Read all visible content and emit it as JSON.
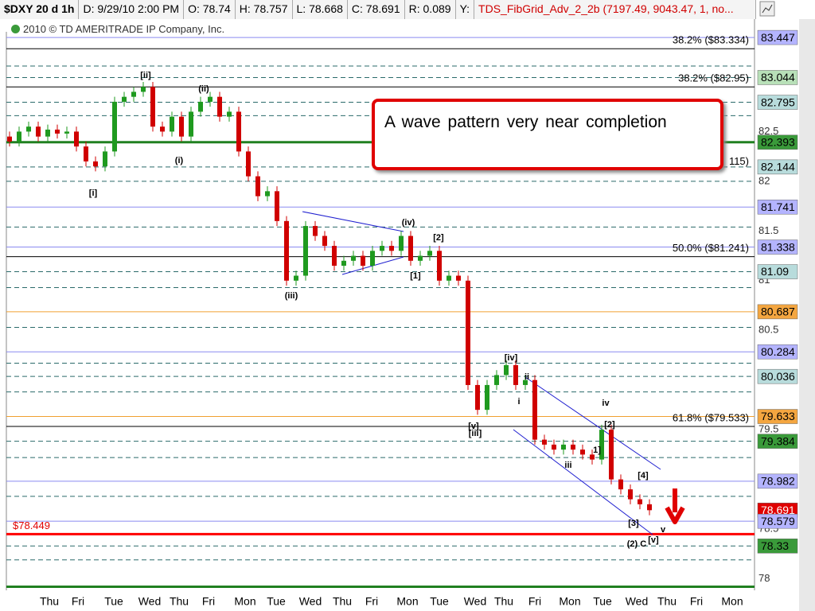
{
  "header": {
    "symbol": "$DXY 20 d 1h",
    "date": "D: 9/29/10 2:00 PM",
    "open": "O: 78.74",
    "high": "H: 78.757",
    "low": "L: 78.668",
    "close": "C: 78.691",
    "range": "R: 0.089",
    "y": "Y:",
    "study": "TDS_FibGrid_Adv_2_2b (7197.49, 9043.47, 1, no...",
    "copyright": "2010 © TD AMERITRADE IP Company, Inc."
  },
  "annotation": "A wave pattern very near completion",
  "chart_data": {
    "type": "candlestick",
    "x": [
      0.4,
      1.6,
      2.8,
      4,
      5.2,
      6.4,
      7.6,
      8.8,
      10,
      11.2,
      12.4,
      13.6,
      14.8,
      16,
      17.2,
      18.4,
      19.6,
      20.8,
      22,
      23.2,
      24.4,
      25.6,
      26.8,
      28,
      29.2,
      30.4,
      31.6,
      32.8,
      34,
      35.2,
      36.4,
      37.6,
      38.8,
      40,
      41.2,
      42.4,
      43.6,
      44.8,
      46,
      47.2,
      48.4,
      49.6,
      50.8,
      52,
      53.2,
      54.4,
      55.6,
      56.8,
      58,
      59.2,
      60.4,
      61.6,
      62.8,
      64,
      65.2,
      66.4,
      67.6,
      68.8,
      70,
      71.2,
      72.4,
      73.6,
      74.8,
      76,
      77.2,
      78.4,
      79.6,
      80.8
    ],
    "open": [
      82.45,
      82.4,
      82.5,
      82.55,
      82.45,
      82.52,
      82.48,
      82.5,
      82.35,
      82.2,
      82.15,
      82.3,
      82.8,
      82.85,
      82.9,
      82.95,
      82.55,
      82.5,
      82.65,
      82.45,
      82.7,
      82.8,
      82.85,
      82.65,
      82.7,
      82.3,
      82.05,
      81.85,
      81.9,
      81.6,
      81.0,
      81.05,
      81.55,
      81.45,
      81.35,
      81.15,
      81.2,
      81.25,
      81.15,
      81.3,
      81.35,
      81.3,
      81.45,
      81.2,
      81.25,
      81.3,
      81.0,
      81.05,
      81.0,
      79.95,
      79.7,
      79.95,
      80.05,
      80.15,
      79.95,
      80.0,
      79.4,
      79.35,
      79.3,
      79.35,
      79.3,
      79.25,
      79.2,
      79.5,
      79.0,
      78.9,
      78.8,
      78.75
    ],
    "high": [
      82.5,
      82.55,
      82.6,
      82.6,
      82.57,
      82.57,
      82.55,
      82.55,
      82.4,
      82.25,
      82.35,
      82.85,
      82.9,
      82.95,
      83.0,
      83.0,
      82.6,
      82.7,
      82.7,
      82.75,
      82.85,
      82.9,
      82.9,
      82.75,
      82.75,
      82.35,
      82.1,
      81.95,
      81.95,
      81.65,
      81.1,
      81.6,
      81.6,
      81.5,
      81.4,
      81.25,
      81.3,
      81.3,
      81.35,
      81.4,
      81.4,
      81.5,
      81.5,
      81.3,
      81.35,
      81.35,
      81.1,
      81.1,
      81.05,
      80.0,
      80.0,
      80.1,
      80.2,
      80.2,
      80.05,
      80.05,
      79.45,
      79.4,
      79.4,
      79.4,
      79.35,
      79.3,
      79.55,
      79.55,
      79.05,
      78.95,
      78.85,
      78.8
    ],
    "low": [
      82.35,
      82.35,
      82.45,
      82.4,
      82.4,
      82.43,
      82.43,
      82.3,
      82.15,
      82.1,
      82.1,
      82.25,
      82.75,
      82.8,
      82.85,
      82.5,
      82.45,
      82.45,
      82.4,
      82.4,
      82.65,
      82.75,
      82.6,
      82.6,
      82.25,
      82.0,
      81.8,
      81.8,
      81.55,
      80.95,
      80.95,
      81.0,
      81.4,
      81.3,
      81.1,
      81.1,
      81.15,
      81.1,
      81.1,
      81.25,
      81.25,
      81.25,
      81.15,
      81.15,
      81.2,
      80.95,
      80.95,
      80.95,
      79.9,
      79.65,
      79.65,
      79.9,
      80.0,
      79.9,
      79.9,
      79.35,
      79.3,
      79.25,
      79.25,
      79.25,
      79.2,
      79.15,
      79.15,
      78.95,
      78.85,
      78.75,
      78.7,
      78.64
    ],
    "close": [
      82.4,
      82.5,
      82.55,
      82.45,
      82.52,
      82.48,
      82.5,
      82.35,
      82.2,
      82.15,
      82.3,
      82.8,
      82.85,
      82.9,
      82.95,
      82.55,
      82.5,
      82.65,
      82.45,
      82.7,
      82.8,
      82.85,
      82.65,
      82.7,
      82.3,
      82.05,
      81.85,
      81.9,
      81.6,
      81.0,
      81.05,
      81.55,
      81.45,
      81.35,
      81.15,
      81.2,
      81.25,
      81.15,
      81.3,
      81.35,
      81.3,
      81.45,
      81.2,
      81.25,
      81.3,
      81.0,
      81.05,
      81.0,
      79.95,
      79.7,
      79.95,
      80.05,
      80.15,
      79.95,
      80.0,
      79.4,
      79.35,
      79.3,
      79.35,
      79.3,
      79.25,
      79.2,
      79.5,
      79.0,
      78.9,
      78.8,
      78.75,
      78.69
    ],
    "up_color": "#1f9a1f",
    "down_color": "#d00000",
    "xlim": [
      0,
      94
    ],
    "xticks": [
      {
        "value": 5.4,
        "label": "Thu"
      },
      {
        "value": 9,
        "label": "Fri"
      },
      {
        "value": 13.5,
        "label": "Tue"
      },
      {
        "value": 18,
        "label": "Wed"
      },
      {
        "value": 21.7,
        "label": "Thu"
      },
      {
        "value": 25.4,
        "label": "Fri"
      },
      {
        "value": 30,
        "label": "Mon"
      },
      {
        "value": 33.9,
        "label": "Tue"
      },
      {
        "value": 38.2,
        "label": "Wed"
      },
      {
        "value": 42.2,
        "label": "Thu"
      },
      {
        "value": 45.9,
        "label": "Fri"
      },
      {
        "value": 50.4,
        "label": "Mon"
      },
      {
        "value": 54.4,
        "label": "Tue"
      },
      {
        "value": 58.9,
        "label": "Wed"
      },
      {
        "value": 62.5,
        "label": "Thu"
      },
      {
        "value": 66.4,
        "label": "Fri"
      },
      {
        "value": 70.8,
        "label": "Mon"
      },
      {
        "value": 74.9,
        "label": "Tue"
      },
      {
        "value": 79.2,
        "label": "Wed"
      },
      {
        "value": 83,
        "label": "Thu"
      },
      {
        "value": 86.7,
        "label": "Fri"
      },
      {
        "value": 91.2,
        "label": "Mon"
      }
    ],
    "ylim": [
      77.9,
      83.6
    ],
    "yticks": [
      82.5,
      82,
      81.5,
      81,
      80.5,
      79.5,
      78.5,
      78
    ],
    "levels": [
      {
        "value": 83.447,
        "color": "#8a8af0",
        "style": "solid"
      },
      {
        "value": 83.334,
        "color": "#000000",
        "style": "solid"
      },
      {
        "value": 83.16,
        "color": "#2a6a6a",
        "style": "dash"
      },
      {
        "value": 83.044,
        "color": "#2a6a6a",
        "style": "dash"
      },
      {
        "value": 82.95,
        "color": "#000000",
        "style": "solid"
      },
      {
        "value": 82.795,
        "color": "#2a6a6a",
        "style": "dash"
      },
      {
        "value": 82.66,
        "color": "#2a6a6a",
        "style": "dash"
      },
      {
        "value": 82.393,
        "color": "#208020",
        "style": "thick"
      },
      {
        "value": 82.144,
        "color": "#2a6a6a",
        "style": "dash"
      },
      {
        "value": 82.0,
        "color": "#2a6a6a",
        "style": "dash"
      },
      {
        "value": 81.741,
        "color": "#8a8af0",
        "style": "solid"
      },
      {
        "value": 81.54,
        "color": "#2a6a6a",
        "style": "dash"
      },
      {
        "value": 81.338,
        "color": "#8a8af0",
        "style": "solid"
      },
      {
        "value": 81.241,
        "color": "#000000",
        "style": "solid"
      },
      {
        "value": 81.09,
        "color": "#2a6a6a",
        "style": "dash"
      },
      {
        "value": 80.93,
        "color": "#2a6a6a",
        "style": "dash"
      },
      {
        "value": 80.687,
        "color": "#f0a030",
        "style": "solid"
      },
      {
        "value": 80.53,
        "color": "#2a6a6a",
        "style": "dash"
      },
      {
        "value": 80.284,
        "color": "#8a8af0",
        "style": "solid"
      },
      {
        "value": 80.17,
        "color": "#2a6a6a",
        "style": "dash"
      },
      {
        "value": 80.036,
        "color": "#2a6a6a",
        "style": "dash"
      },
      {
        "value": 79.88,
        "color": "#2a6a6a",
        "style": "dash"
      },
      {
        "value": 79.633,
        "color": "#f0a030",
        "style": "solid"
      },
      {
        "value": 79.533,
        "color": "#000000",
        "style": "solid"
      },
      {
        "value": 79.384,
        "color": "#2a6a6a",
        "style": "dash"
      },
      {
        "value": 79.22,
        "color": "#2a6a6a",
        "style": "dash"
      },
      {
        "value": 78.982,
        "color": "#8a8af0",
        "style": "solid"
      },
      {
        "value": 78.83,
        "color": "#2a6a6a",
        "style": "dash"
      },
      {
        "value": 78.579,
        "color": "#8a8af0",
        "style": "solid"
      },
      {
        "value": 78.449,
        "color": "#ff0000",
        "style": "thick"
      },
      {
        "value": 78.33,
        "color": "#2a6a6a",
        "style": "dash"
      },
      {
        "value": 78.19,
        "color": "#2a6a6a",
        "style": "dash"
      },
      {
        "value": 77.92,
        "color": "#208020",
        "style": "thick"
      }
    ],
    "price_tags": [
      {
        "value": 83.447,
        "bg": "#b4b4ff",
        "fg": "#000000"
      },
      {
        "value": 83.044,
        "bg": "#b8e0b8",
        "fg": "#000000"
      },
      {
        "value": 82.795,
        "bg": "#b8dcdc",
        "fg": "#000000"
      },
      {
        "value": 82.393,
        "bg": "#3a9a3a",
        "fg": "#000000"
      },
      {
        "value": 82.144,
        "bg": "#b8dcdc",
        "fg": "#000000"
      },
      {
        "value": 81.741,
        "bg": "#b4b4ff",
        "fg": "#000000"
      },
      {
        "value": 81.338,
        "bg": "#b4b4ff",
        "fg": "#000000"
      },
      {
        "value": 81.09,
        "bg": "#b8dcdc",
        "fg": "#000000"
      },
      {
        "value": 80.687,
        "bg": "#f4a640",
        "fg": "#000000"
      },
      {
        "value": 80.284,
        "bg": "#b4b4ff",
        "fg": "#000000"
      },
      {
        "value": 80.036,
        "bg": "#b8dcdc",
        "fg": "#000000"
      },
      {
        "value": 79.633,
        "bg": "#f4a640",
        "fg": "#000000"
      },
      {
        "value": 79.384,
        "bg": "#3a9a3a",
        "fg": "#000000"
      },
      {
        "value": 78.982,
        "bg": "#b4b4ff",
        "fg": "#000000"
      },
      {
        "value": 78.691,
        "bg": "#e00000",
        "fg": "#ffffff"
      },
      {
        "value": 78.579,
        "bg": "#b4b4ff",
        "fg": "#000000"
      },
      {
        "value": 78.33,
        "bg": "#3a9a3a",
        "fg": "#000000"
      }
    ],
    "fib_labels": [
      {
        "label": "38.2%  ($83.334)",
        "value": 83.334
      },
      {
        "label": "38.2%  ($82.95)",
        "value": 82.95
      },
      {
        "label": "115)",
        "value": 82.115
      },
      {
        "label": "50.0%  ($81.241)",
        "value": 81.241
      },
      {
        "label": "61.8%  ($79.533)",
        "value": 79.533
      }
    ],
    "last_label": {
      "label": "$78.449",
      "value": 78.449
    },
    "wave_labels": [
      "[ii]",
      "(ii)",
      "(i)",
      "[i]",
      "(iii)",
      "(iv)",
      "[2]",
      "[1]",
      "[iv]",
      "ii",
      "i",
      "[v]",
      "[iii]",
      "iv",
      "[2]",
      "1]",
      "iii",
      "[4]",
      "[3]",
      "(2) C",
      "[v]",
      "v"
    ]
  }
}
